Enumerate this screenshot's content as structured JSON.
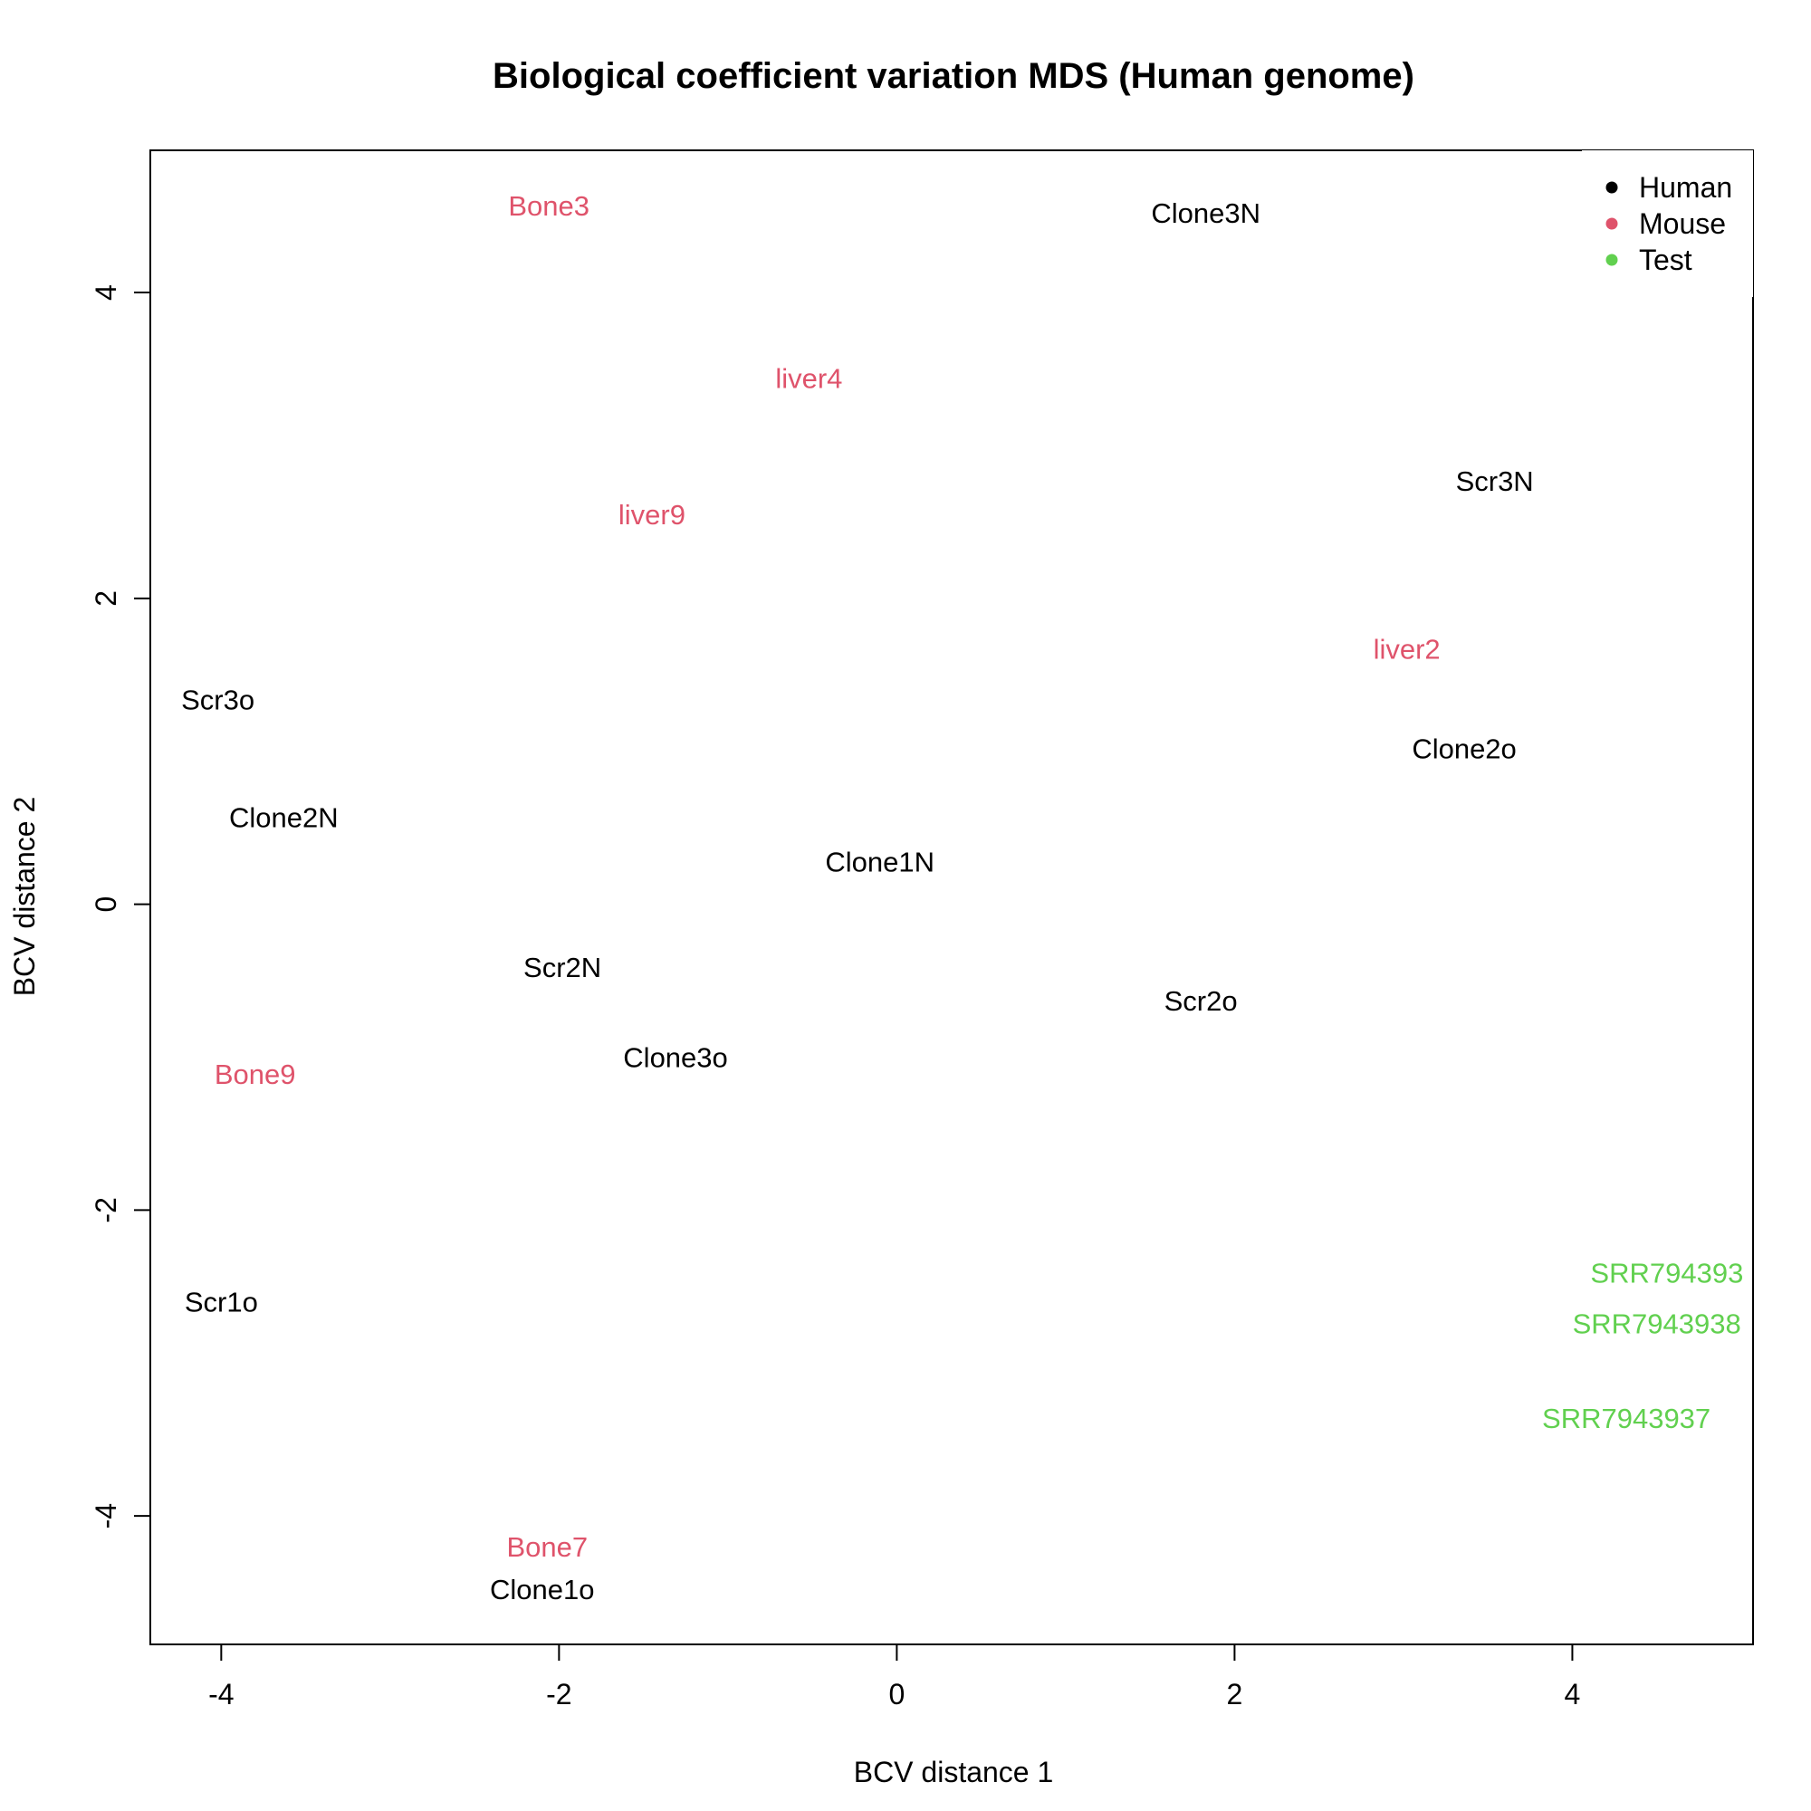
{
  "chart_data": {
    "type": "scatter",
    "title": "Biological coefficient variation MDS (Human genome)",
    "xlabel": "BCV distance 1",
    "ylabel": "BCV distance 2",
    "xlim": [
      -4.42,
      5.07
    ],
    "ylim": [
      -4.84,
      4.93
    ],
    "xticks": [
      -4,
      -2,
      0,
      2,
      4
    ],
    "yticks": [
      -4,
      -2,
      0,
      2,
      4
    ],
    "legend": {
      "position": "top-right",
      "entries": [
        {
          "name": "Human",
          "color": "#000000"
        },
        {
          "name": "Mouse",
          "color": "#DF536B"
        },
        {
          "name": "Test",
          "color": "#61D04F"
        }
      ]
    },
    "points": [
      {
        "label": "Bone3",
        "x": -2.06,
        "y": 4.57,
        "group": "Mouse"
      },
      {
        "label": "Clone3N",
        "x": 1.83,
        "y": 4.52,
        "group": "Human"
      },
      {
        "label": "liver4",
        "x": -0.52,
        "y": 3.44,
        "group": "Mouse"
      },
      {
        "label": "Scr3N",
        "x": 3.54,
        "y": 2.77,
        "group": "Human"
      },
      {
        "label": "liver9",
        "x": -1.45,
        "y": 2.55,
        "group": "Mouse"
      },
      {
        "label": "liver2",
        "x": 3.02,
        "y": 1.67,
        "group": "Mouse"
      },
      {
        "label": "Scr3o",
        "x": -4.02,
        "y": 1.34,
        "group": "Human"
      },
      {
        "label": "Clone2o",
        "x": 3.36,
        "y": 1.02,
        "group": "Human"
      },
      {
        "label": "Clone2N",
        "x": -3.63,
        "y": 0.57,
        "group": "Human"
      },
      {
        "label": "Clone1N",
        "x": -0.1,
        "y": 0.28,
        "group": "Human"
      },
      {
        "label": "Scr2N",
        "x": -1.98,
        "y": -0.41,
        "group": "Human"
      },
      {
        "label": "Scr2o",
        "x": 1.8,
        "y": -0.63,
        "group": "Human"
      },
      {
        "label": "Clone3o",
        "x": -1.31,
        "y": -1.0,
        "group": "Human"
      },
      {
        "label": "Bone9",
        "x": -3.8,
        "y": -1.11,
        "group": "Mouse"
      },
      {
        "label": "SRR794393",
        "x": 4.56,
        "y": -2.41,
        "group": "Test"
      },
      {
        "label": "SRR7943938",
        "x": 4.5,
        "y": -2.74,
        "group": "Test"
      },
      {
        "label": "Scr1o",
        "x": -4.0,
        "y": -2.6,
        "group": "Human"
      },
      {
        "label": "SRR7943937",
        "x": 4.32,
        "y": -3.36,
        "group": "Test"
      },
      {
        "label": "Bone7",
        "x": -2.07,
        "y": -4.2,
        "group": "Mouse"
      },
      {
        "label": "Clone1o",
        "x": -2.1,
        "y": -4.48,
        "group": "Human"
      }
    ]
  }
}
